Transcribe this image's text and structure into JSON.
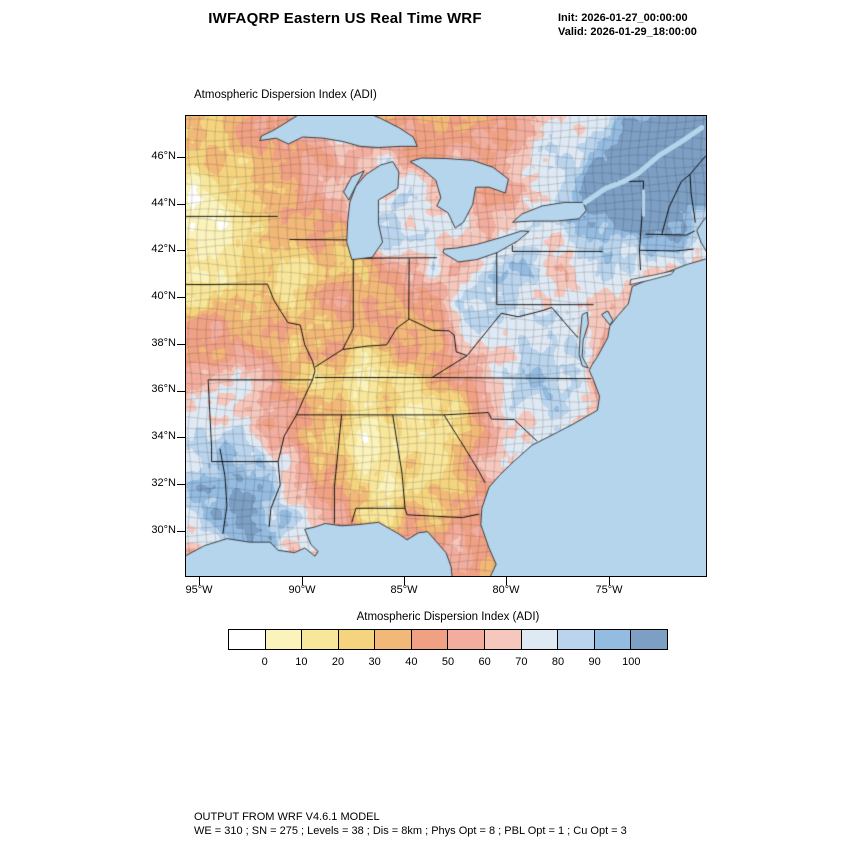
{
  "header": {
    "title": "IWFAQRP Eastern US Real Time WRF",
    "init_label": "Init: 2026-01-27_00:00:00",
    "valid_label": "Valid: 2026-01-29_18:00:00"
  },
  "map": {
    "subtitle": "Atmospheric Dispersion Index   (ADI)",
    "lat_ticks": [
      "46°N",
      "44°N",
      "42°N",
      "40°N",
      "38°N",
      "36°N",
      "34°N",
      "32°N",
      "30°N"
    ],
    "lon_ticks": [
      "95°W",
      "90°W",
      "85°W",
      "80°W",
      "75°W"
    ],
    "ocean_color": "#b5d5ec"
  },
  "colorbar": {
    "title": "Atmospheric Dispersion Index  (ADI)",
    "tick_labels": [
      "0",
      "10",
      "20",
      "30",
      "40",
      "50",
      "60",
      "70",
      "80",
      "90",
      "100"
    ],
    "colors": [
      "#ffffff",
      "#fbf3bc",
      "#f8e69a",
      "#f5d47f",
      "#f2b878",
      "#f0a184",
      "#f2ad9e",
      "#f6c8bd",
      "#dfe9f4",
      "#b9d4ec",
      "#94bbe0",
      "#7d9fc4"
    ]
  },
  "footer": {
    "line1": "OUTPUT FROM WRF V4.6.1 MODEL",
    "line2": "WE = 310 ; SN = 275 ; Levels = 38 ; Dis = 8km ; Phys Opt = 8 ; PBL Opt = 1 ; Cu Opt = 3"
  },
  "chart_data": {
    "type": "heatmap",
    "title": "Atmospheric Dispersion Index (ADI)",
    "region": "Eastern US",
    "x_ticks": [
      "95°W",
      "90°W",
      "85°W",
      "80°W",
      "75°W"
    ],
    "y_ticks": [
      "30°N",
      "32°N",
      "34°N",
      "36°N",
      "38°N",
      "40°N",
      "42°N",
      "44°N",
      "46°N"
    ],
    "colorbar_ticks": [
      0,
      10,
      20,
      30,
      40,
      50,
      60,
      70,
      80,
      90,
      100
    ],
    "colorbar_colors": [
      "#ffffff",
      "#fbf3bc",
      "#f8e69a",
      "#f5d47f",
      "#f2b878",
      "#f0a184",
      "#f2ad9e",
      "#f6c8bd",
      "#dfe9f4",
      "#b9d4ec",
      "#94bbe0",
      "#7d9fc4"
    ],
    "legend_position": "bottom"
  }
}
